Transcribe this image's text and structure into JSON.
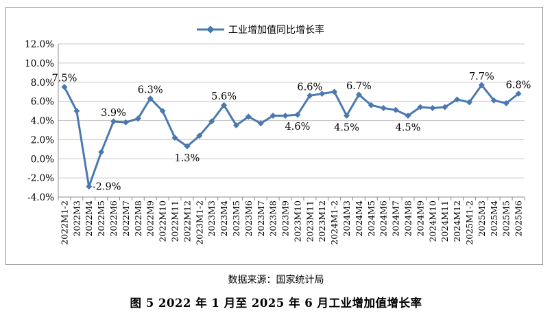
{
  "source_note": "数据来源：国家统计局",
  "caption": "图 5  2022 年 1 月至 2025 年 6 月工业增加值增长率",
  "colors": {
    "series": "#4a78b0",
    "grid": "#c8c8c8",
    "axis": "#8c8c8c"
  },
  "chart_data": {
    "type": "line",
    "legend": {
      "entries": [
        "工业增加值同比增长率"
      ],
      "position": "top-center"
    },
    "y_axis": {
      "range": [
        -4,
        12
      ],
      "ticks": [
        -4,
        -2,
        0,
        2,
        4,
        6,
        8,
        10,
        12
      ],
      "tick_labels": [
        "-4.0%",
        "-2.0%",
        "0.0%",
        "2.0%",
        "4.0%",
        "6.0%",
        "8.0%",
        "10.0%",
        "12.0%"
      ]
    },
    "grid": true,
    "categories": [
      "2022M1-2",
      "2022M3",
      "2022M4",
      "2022M5",
      "2022M6",
      "2022M7",
      "2022M8",
      "2022M9",
      "2022M10",
      "2022M11",
      "2022M12",
      "2023M1-2",
      "2023M3",
      "2023M4",
      "2023M5",
      "2023M6",
      "2023M7",
      "2023M8",
      "2023M9",
      "2023M10",
      "2023M11",
      "2023M12",
      "2024M1-2",
      "2024M3",
      "2024M4",
      "2024M5",
      "2024M6",
      "2024M7",
      "2024M8",
      "2024M9",
      "2024M10",
      "2024M11",
      "2024M12",
      "2025M1-2",
      "2025M3",
      "2025M4",
      "2025M5",
      "2025M6"
    ],
    "series": [
      {
        "name": "工业增加值同比增长率",
        "values": [
          7.5,
          5.0,
          -2.9,
          0.7,
          3.9,
          3.8,
          4.2,
          6.3,
          5.0,
          2.2,
          1.3,
          2.4,
          3.9,
          5.6,
          3.5,
          4.4,
          3.7,
          4.5,
          4.5,
          4.6,
          6.6,
          6.8,
          7.0,
          4.5,
          6.7,
          5.6,
          5.3,
          5.1,
          4.5,
          5.4,
          5.3,
          5.4,
          6.2,
          5.9,
          7.7,
          6.1,
          5.8,
          6.8
        ]
      }
    ],
    "data_labels": [
      {
        "index": 0,
        "text": "7.5%",
        "pos": "above"
      },
      {
        "index": 2,
        "text": "-2.9%",
        "pos": "right"
      },
      {
        "index": 4,
        "text": "3.9%",
        "pos": "above"
      },
      {
        "index": 7,
        "text": "6.3%",
        "pos": "above"
      },
      {
        "index": 10,
        "text": "1.3%",
        "pos": "below"
      },
      {
        "index": 13,
        "text": "5.6%",
        "pos": "above"
      },
      {
        "index": 19,
        "text": "4.6%",
        "pos": "below"
      },
      {
        "index": 20,
        "text": "6.6%",
        "pos": "above"
      },
      {
        "index": 23,
        "text": "4.5%",
        "pos": "below"
      },
      {
        "index": 24,
        "text": "6.7%",
        "pos": "above"
      },
      {
        "index": 28,
        "text": "4.5%",
        "pos": "below"
      },
      {
        "index": 34,
        "text": "7.7%",
        "pos": "above"
      },
      {
        "index": 37,
        "text": "6.8%",
        "pos": "above"
      }
    ]
  }
}
